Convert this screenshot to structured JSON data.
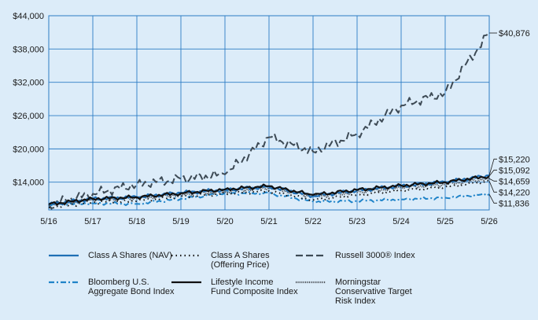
{
  "chart_data": {
    "type": "line",
    "title": "",
    "xlabel": "",
    "ylabel": "",
    "x_tick_labels": [
      "5/16",
      "5/17",
      "5/18",
      "5/19",
      "5/20",
      "5/21",
      "5/22",
      "5/23",
      "5/24",
      "5/25",
      "5/26"
    ],
    "y_tick_labels": [
      "$44,000",
      "$38,000",
      "$32,000",
      "$26,000",
      "$20,000",
      "$14,000"
    ],
    "y_ticks": [
      44000,
      38000,
      32000,
      26000,
      20000,
      14000
    ],
    "ylim": [
      9000,
      44000
    ],
    "grid": true,
    "legend_position": "bottom",
    "series": [
      {
        "name": "Class A Shares (NAV)",
        "color": "#1f6fb5",
        "style": "solid",
        "end_label": "$15,220",
        "points": [
          [
            "5/16",
            10000
          ],
          [
            "5/17",
            11000
          ],
          [
            "5/18",
            11300
          ],
          [
            "5/19",
            12100
          ],
          [
            "5/20",
            12600
          ],
          [
            "5/21",
            13200
          ],
          [
            "5/22",
            11500
          ],
          [
            "5/23",
            12500
          ],
          [
            "5/24",
            13300
          ],
          [
            "5/25",
            14000
          ],
          [
            "5/26",
            15220
          ]
        ]
      },
      {
        "name": "Class A Shares (Offering Price)",
        "color": "#1a1a1a",
        "style": "dotted",
        "end_label": "$14,220",
        "points": [
          [
            "5/16",
            9400
          ],
          [
            "5/17",
            10400
          ],
          [
            "5/18",
            10600
          ],
          [
            "5/19",
            11400
          ],
          [
            "5/20",
            11900
          ],
          [
            "5/21",
            12400
          ],
          [
            "5/22",
            10800
          ],
          [
            "5/23",
            11700
          ],
          [
            "5/24",
            12500
          ],
          [
            "5/25",
            13100
          ],
          [
            "5/26",
            14220
          ]
        ]
      },
      {
        "name": "Russell 3000® Index",
        "color": "#3d4a55",
        "style": "dashed",
        "end_label": "$40,876",
        "points": [
          [
            "5/16",
            10000
          ],
          [
            "5/17",
            11900
          ],
          [
            "5/18",
            13600
          ],
          [
            "5/19",
            14600
          ],
          [
            "5/20",
            15400
          ],
          [
            "5/21",
            22100
          ],
          [
            "5/22",
            19500
          ],
          [
            "5/23",
            22700
          ],
          [
            "5/24",
            27800
          ],
          [
            "5/25",
            30100
          ],
          [
            "5/26",
            40876
          ]
        ]
      },
      {
        "name": "Bloomberg U.S. Aggregate Bond Index",
        "color": "#1f83c8",
        "style": "dashdot",
        "end_label": "$11,836",
        "points": [
          [
            "5/16",
            10000
          ],
          [
            "5/17",
            10200
          ],
          [
            "5/18",
            10100
          ],
          [
            "5/19",
            11000
          ],
          [
            "5/20",
            12000
          ],
          [
            "5/21",
            12000
          ],
          [
            "5/22",
            10500
          ],
          [
            "5/23",
            10600
          ],
          [
            "5/24",
            10900
          ],
          [
            "5/25",
            11200
          ],
          [
            "5/26",
            11836
          ]
        ]
      },
      {
        "name": "Lifestyle Income Fund Composite Index",
        "color": "#111111",
        "style": "solid",
        "end_label": "$15,092",
        "points": [
          [
            "5/16",
            10000
          ],
          [
            "5/17",
            11000
          ],
          [
            "5/18",
            11300
          ],
          [
            "5/19",
            12000
          ],
          [
            "5/20",
            12700
          ],
          [
            "5/21",
            13300
          ],
          [
            "5/22",
            11700
          ],
          [
            "5/23",
            12600
          ],
          [
            "5/24",
            13400
          ],
          [
            "5/25",
            14000
          ],
          [
            "5/26",
            15092
          ]
        ]
      },
      {
        "name": "Morningstar Conservative Target Risk Index",
        "color": "#4a4f55",
        "style": "dense",
        "end_label": "$14,659",
        "points": [
          [
            "5/16",
            10000
          ],
          [
            "5/17",
            10800
          ],
          [
            "5/18",
            11100
          ],
          [
            "5/19",
            11800
          ],
          [
            "5/20",
            12300
          ],
          [
            "5/21",
            13000
          ],
          [
            "5/22",
            11400
          ],
          [
            "5/23",
            12200
          ],
          [
            "5/24",
            13000
          ],
          [
            "5/25",
            13600
          ],
          [
            "5/26",
            14659
          ]
        ]
      }
    ]
  },
  "legend": {
    "items": [
      {
        "lines": [
          "Class A Shares (NAV)"
        ]
      },
      {
        "lines": [
          "Class A Shares",
          "(Offering Price)"
        ]
      },
      {
        "lines": [
          "Russell 3000® Index"
        ]
      },
      {
        "lines": [
          "Bloomberg U.S.",
          "Aggregate Bond Index"
        ]
      },
      {
        "lines": [
          "Lifestyle Income",
          "Fund Composite Index"
        ]
      },
      {
        "lines": [
          "Morningstar",
          "Conservative Target",
          "Risk Index"
        ]
      }
    ]
  }
}
